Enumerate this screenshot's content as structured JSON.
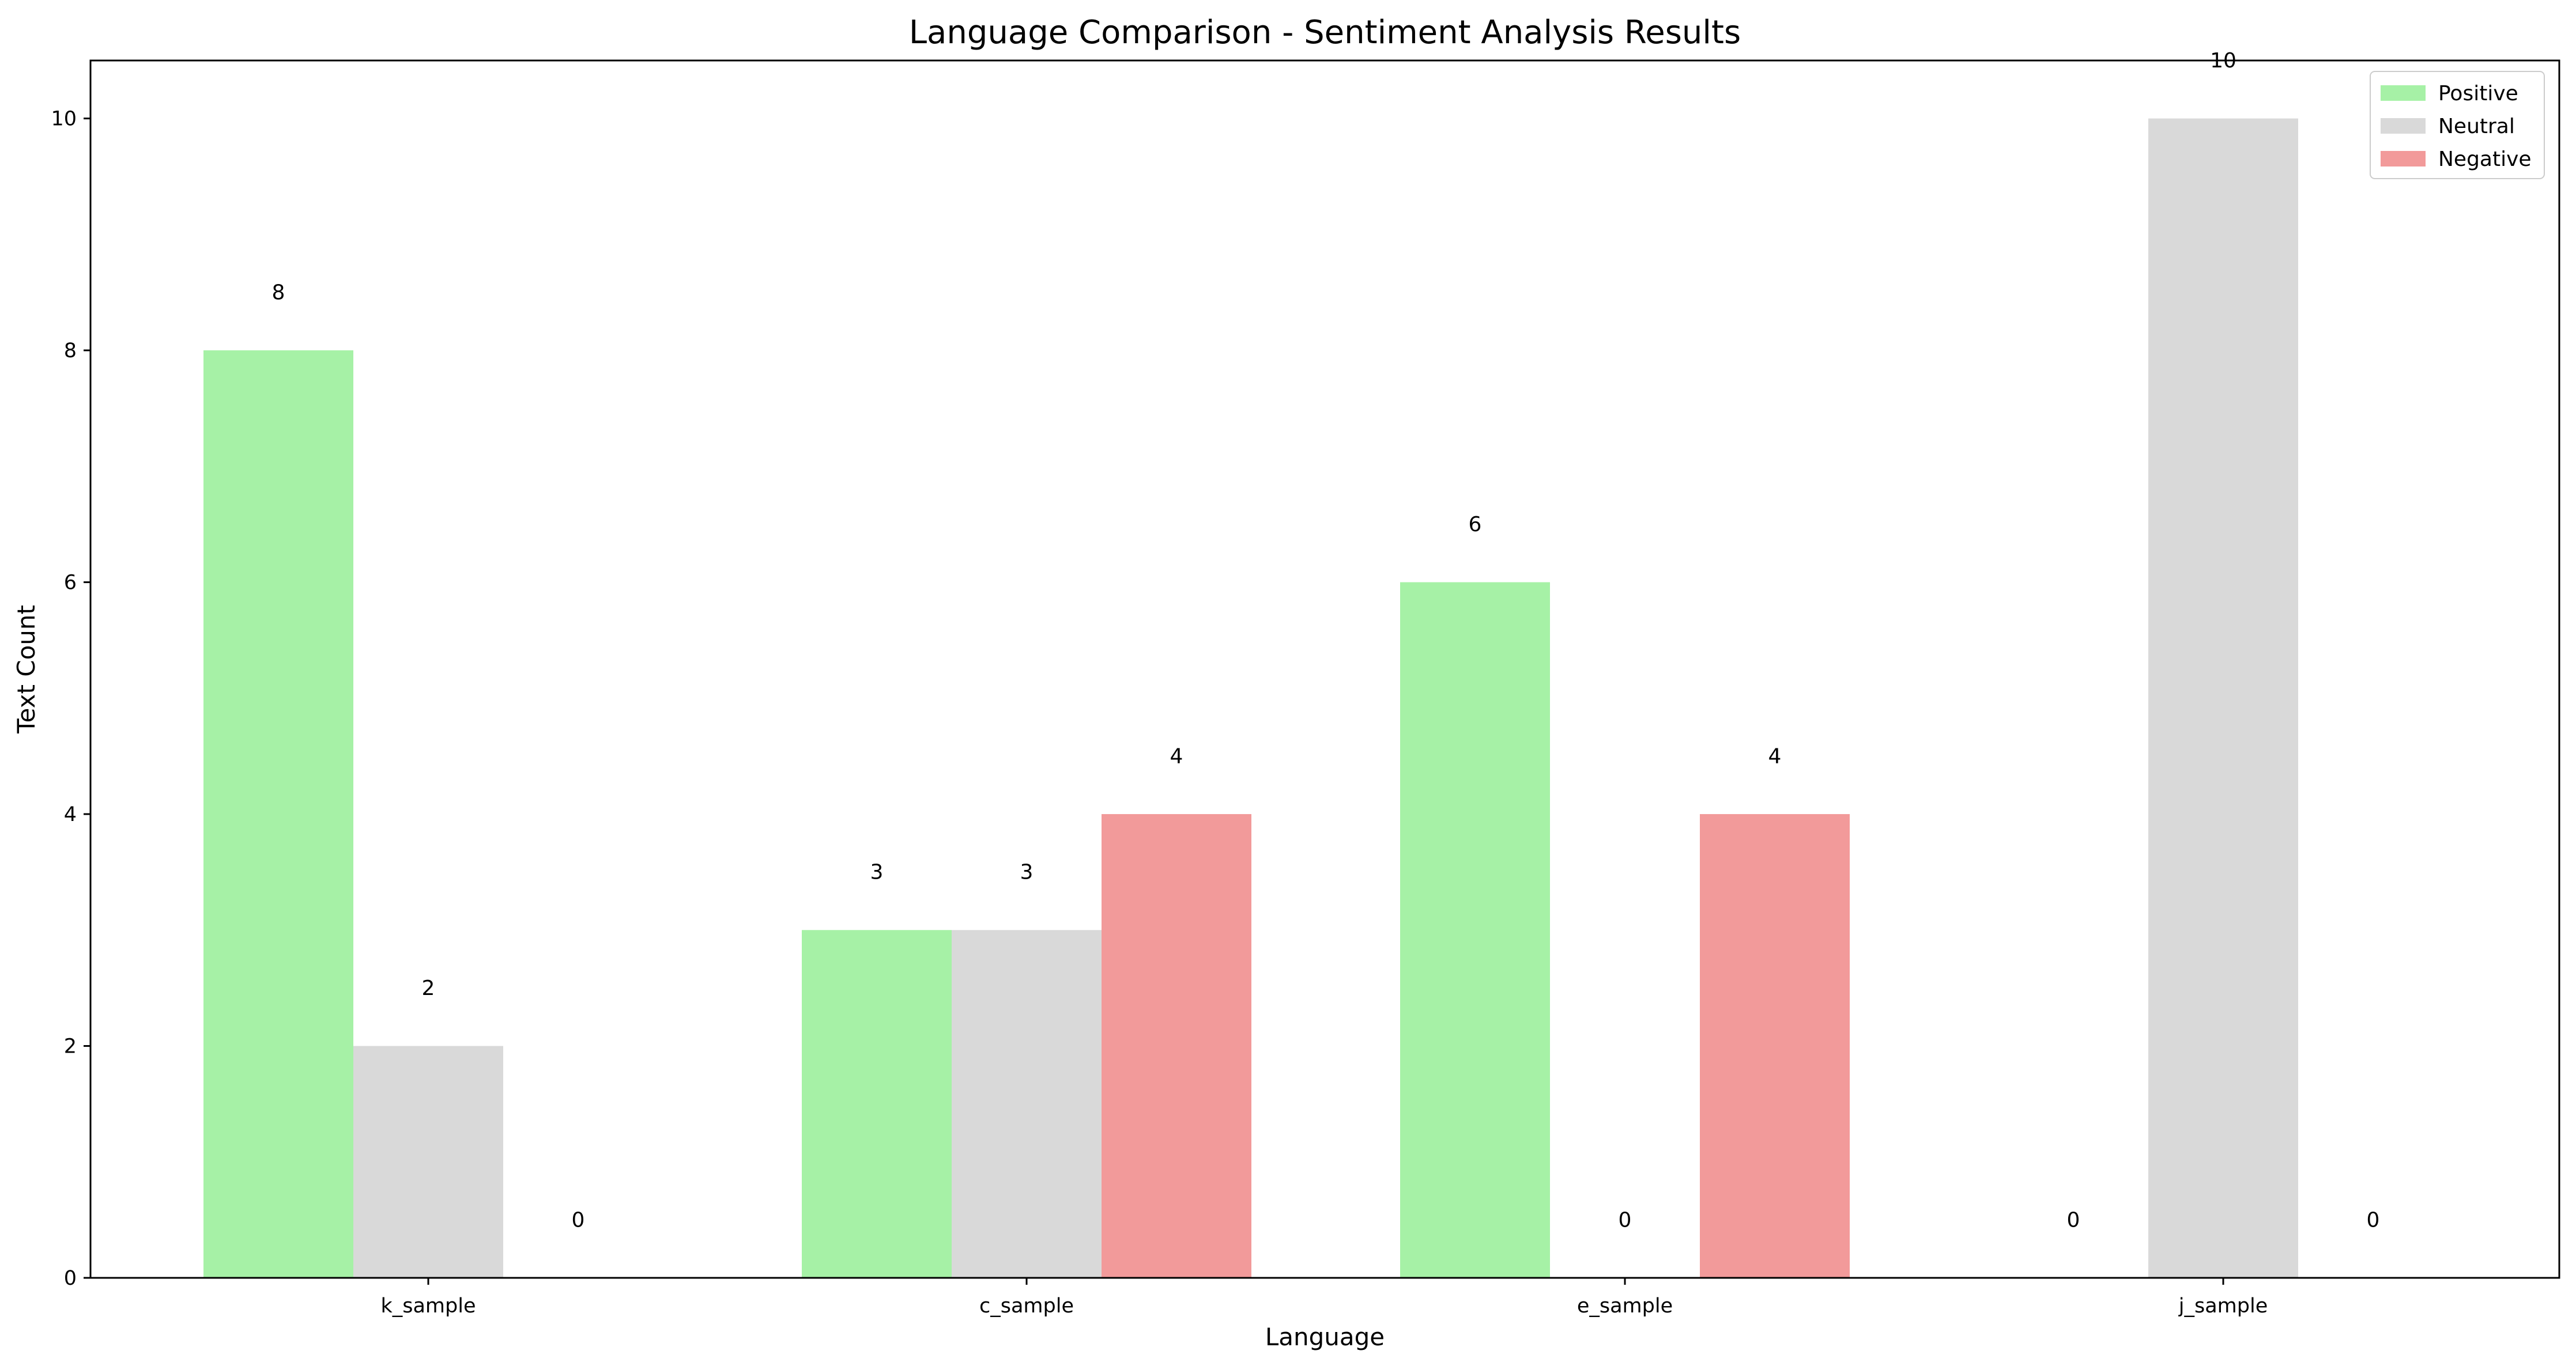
{
  "chart_data": {
    "type": "bar",
    "title": "Language Comparison - Sentiment Analysis Results",
    "xlabel": "Language",
    "ylabel": "Text Count",
    "categories": [
      "k_sample",
      "c_sample",
      "e_sample",
      "j_sample"
    ],
    "series": [
      {
        "name": "Positive",
        "values": [
          8,
          3,
          6,
          0
        ],
        "color": "#a6f1a6"
      },
      {
        "name": "Neutral",
        "values": [
          2,
          3,
          0,
          10
        ],
        "color": "#d9d9d9"
      },
      {
        "name": "Negative",
        "values": [
          0,
          4,
          4,
          0
        ],
        "color": "#f29a9a"
      }
    ],
    "ylim": [
      0,
      10.5
    ],
    "yticks": [
      0,
      2,
      4,
      6,
      8,
      10
    ],
    "grid": false,
    "legend_position": "top-right"
  }
}
